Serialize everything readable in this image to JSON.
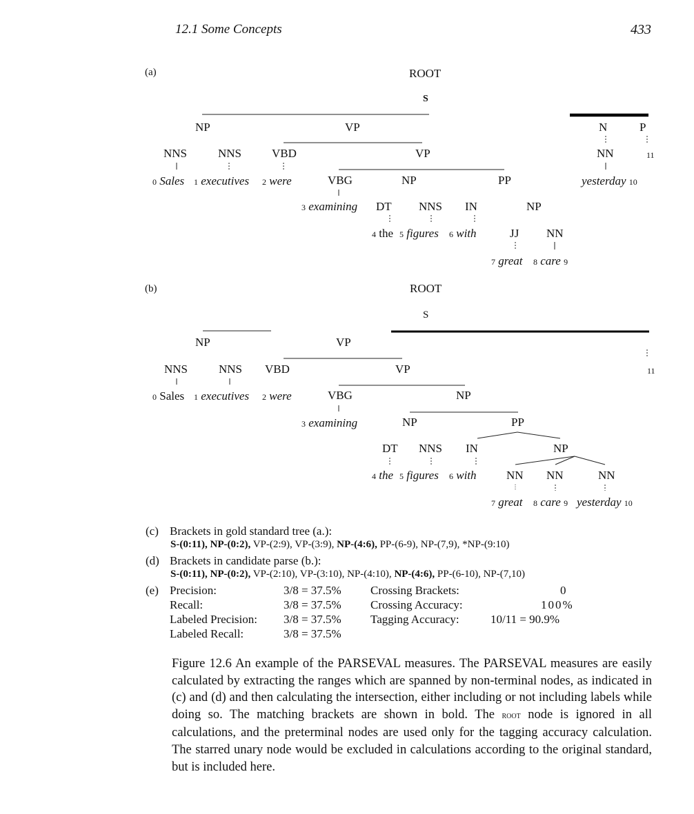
{
  "header": {
    "section": "12.1 Some Concepts",
    "page": "433"
  },
  "tree_a": {
    "label": "(a)",
    "nodes": {
      "root": "ROOT",
      "s": "S",
      "np": "NP",
      "vp": "VP",
      "n": "N",
      "p": "P",
      "nns1": "NNS",
      "nns2": "NNS",
      "vbd": "VBD",
      "vp2": "VP",
      "nn_yest": "NN",
      "vbg": "VBG",
      "np2": "NP",
      "pp": "PP",
      "dt": "DT",
      "nns3": "NNS",
      "in": "IN",
      "np3": "NP",
      "jj": "JJ",
      "nn": "NN"
    },
    "words": [
      "Sales",
      "executives",
      "were",
      "examining",
      "the",
      "figures",
      "with",
      "great",
      "care",
      "yesterday"
    ],
    "indices": [
      "0",
      "1",
      "2",
      "3",
      "4",
      "5",
      "6",
      "7",
      "8",
      "9",
      "10",
      "11"
    ]
  },
  "tree_b": {
    "label": "(b)",
    "nodes": {
      "root": "ROOT",
      "s": "S",
      "np": "NP",
      "vp": "VP",
      "nns1": "NNS",
      "nns2": "NNS",
      "vbd": "VBD",
      "vp2": "VP",
      "vbg": "VBG",
      "np2": "NP",
      "np3": "NP",
      "pp": "PP",
      "dt": "DT",
      "nns3": "NNS",
      "in": "IN",
      "np4": "NP",
      "nn1": "NN",
      "nn2": "NN",
      "nn3": "NN"
    },
    "words": [
      "Sales",
      "executives",
      "were",
      "examining",
      "the",
      "figures",
      "with",
      "great",
      "care",
      "yesterday"
    ],
    "indices": [
      "0",
      "1",
      "2",
      "3",
      "4",
      "5",
      "6",
      "7",
      "8",
      "9",
      "10",
      "11"
    ]
  },
  "brackets": {
    "c_label": "(c)",
    "c_title": "Brackets in gold standard tree (a.):",
    "c_bold1": "S-(0:11), NP-(0:2),",
    "c_plain1": " VP-(2:9), VP-(3:9),",
    "c_bold2": " NP-(4:6),",
    "c_plain2": " PP-(6-9), NP-(7,9), *NP-(9:10)",
    "d_label": "(d)",
    "d_title": "Brackets in candidate parse (b.):",
    "d_bold1": "S-(0:11), NP-(0:2),",
    "d_plain1": " VP-(2:10), VP-(3:10), NP-(4:10),",
    "d_bold2": " NP-(4:6),",
    "d_plain2": " PP-(6-10), NP-(7,10)"
  },
  "metrics": {
    "e_label": "(e)",
    "rows": [
      {
        "name": "Precision:",
        "value": "3/8 = 37.5%",
        "name2": "Crossing  Brackets:",
        "value2": "0"
      },
      {
        "name": "Recall:",
        "value": "3/8 = 37.5%",
        "name2": "Crossing  Accuracy:",
        "value2": "100%"
      },
      {
        "name": "Labeled  Precision:",
        "value": "3/8 = 37.5%",
        "name2": "Tagging  Accuracy:",
        "value2": "10/11 = 90.9%"
      },
      {
        "name": "Labeled  Recall:",
        "value": "3/8 = 37.5%",
        "name2": "",
        "value2": ""
      }
    ]
  },
  "caption": {
    "lead": "Figure  12.6   An example of the PARSEVAL measures. The PARSEVAL measures are easily calculated by extracting the ranges which are spanned by non-terminal nodes, as indicated in (c) and (d) and then calculating the intersection, either including or not including labels while doing so. The matching brackets are shown in bold. The ",
    "root_word": "root",
    "tail": " node is ignored in all calculations, and the preterminal nodes are used only for the tagging accuracy calculation. The starred unary node would be excluded in calculations according to the original standard, but is included here."
  }
}
